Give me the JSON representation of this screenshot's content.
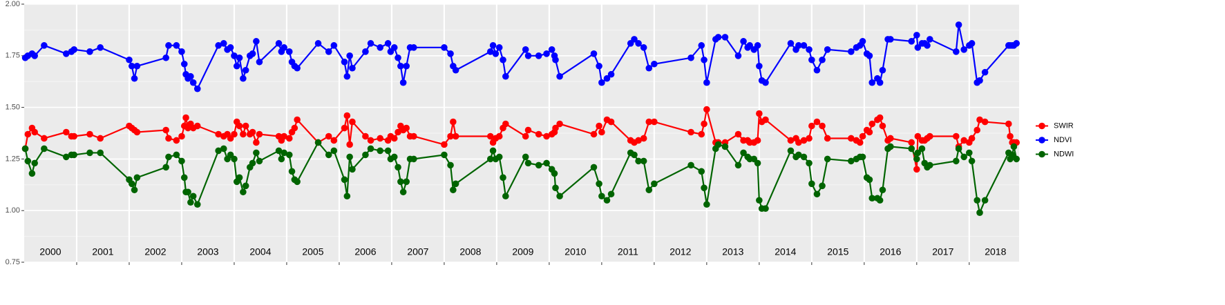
{
  "chart_data": {
    "type": "line",
    "x": [
      2000.02,
      2000.07,
      2000.15,
      2000.2,
      2000.38,
      2000.8,
      2000.9,
      2000.95,
      2001.25,
      2001.45,
      2002.0,
      2002.05,
      2002.1,
      2002.15,
      2002.7,
      2002.75,
      2002.9,
      2003.0,
      2003.05,
      2003.08,
      2003.12,
      2003.17,
      2003.22,
      2003.3,
      2003.7,
      2003.8,
      2003.87,
      2003.93,
      2004.0,
      2004.05,
      2004.1,
      2004.17,
      2004.22,
      2004.3,
      2004.35,
      2004.42,
      2004.48,
      2004.85,
      2004.9,
      2004.95,
      2005.05,
      2005.1,
      2005.15,
      2005.2,
      2005.6,
      2005.8,
      2005.9,
      2006.1,
      2006.15,
      2006.2,
      2006.25,
      2006.5,
      2006.6,
      2006.78,
      2006.93,
      2006.98,
      2007.05,
      2007.12,
      2007.17,
      2007.22,
      2007.28,
      2007.35,
      2007.42,
      2008.0,
      2008.12,
      2008.17,
      2008.22,
      2008.88,
      2008.93,
      2008.98,
      2009.05,
      2009.12,
      2009.17,
      2009.55,
      2009.6,
      2009.8,
      2009.95,
      2010.05,
      2010.1,
      2010.12,
      2010.2,
      2010.85,
      2010.95,
      2011.0,
      2011.1,
      2011.18,
      2011.55,
      2011.62,
      2011.7,
      2011.8,
      2011.9,
      2012.0,
      2012.7,
      2012.9,
      2012.95,
      2013.0,
      2013.17,
      2013.22,
      2013.35,
      2013.6,
      2013.7,
      2013.78,
      2013.82,
      2013.9,
      2013.97,
      2014.0,
      2014.05,
      2014.12,
      2014.6,
      2014.7,
      2014.75,
      2014.85,
      2014.95,
      2015.0,
      2015.1,
      2015.2,
      2015.3,
      2015.75,
      2015.85,
      2015.92,
      2015.97,
      2016.05,
      2016.1,
      2016.15,
      2016.25,
      2016.3,
      2016.35,
      2016.45,
      2016.5,
      2016.9,
      2017.0,
      2017.02,
      2017.1,
      2017.15,
      2017.2,
      2017.25,
      2017.75,
      2017.8,
      2017.9,
      2018.0,
      2018.05,
      2018.15,
      2018.2,
      2018.3,
      2018.75,
      2018.78,
      2018.82,
      2018.85,
      2018.9
    ],
    "series": [
      {
        "name": "SWIR",
        "color": "#ff0000",
        "values": [
          1.3,
          1.37,
          1.4,
          1.38,
          1.35,
          1.38,
          1.36,
          1.36,
          1.37,
          1.35,
          1.41,
          1.4,
          1.39,
          1.38,
          1.39,
          1.35,
          1.34,
          1.36,
          1.41,
          1.45,
          1.4,
          1.42,
          1.4,
          1.41,
          1.37,
          1.36,
          1.37,
          1.35,
          1.37,
          1.43,
          1.41,
          1.37,
          1.41,
          1.37,
          1.38,
          1.33,
          1.37,
          1.36,
          1.34,
          1.36,
          1.35,
          1.38,
          1.4,
          1.44,
          1.33,
          1.36,
          1.34,
          1.4,
          1.46,
          1.32,
          1.43,
          1.36,
          1.34,
          1.35,
          1.34,
          1.36,
          1.35,
          1.38,
          1.41,
          1.39,
          1.4,
          1.36,
          1.36,
          1.32,
          1.36,
          1.43,
          1.36,
          1.36,
          1.33,
          1.35,
          1.36,
          1.4,
          1.42,
          1.36,
          1.39,
          1.37,
          1.36,
          1.37,
          1.38,
          1.4,
          1.42,
          1.37,
          1.41,
          1.38,
          1.44,
          1.43,
          1.34,
          1.33,
          1.34,
          1.35,
          1.43,
          1.43,
          1.38,
          1.37,
          1.42,
          1.49,
          1.33,
          1.33,
          1.33,
          1.37,
          1.34,
          1.34,
          1.33,
          1.33,
          1.34,
          1.47,
          1.43,
          1.44,
          1.34,
          1.35,
          1.33,
          1.34,
          1.35,
          1.41,
          1.43,
          1.41,
          1.35,
          1.35,
          1.34,
          1.33,
          1.36,
          1.39,
          1.38,
          1.42,
          1.44,
          1.45,
          1.41,
          1.34,
          1.35,
          1.33,
          1.2,
          1.36,
          1.34,
          1.34,
          1.35,
          1.36,
          1.36,
          1.31,
          1.34,
          1.33,
          1.35,
          1.39,
          1.44,
          1.43,
          1.42,
          1.36,
          1.33,
          1.33,
          1.33
        ]
      },
      {
        "name": "NDVI",
        "color": "#0000ff",
        "values": [
          1.74,
          1.75,
          1.76,
          1.75,
          1.8,
          1.76,
          1.77,
          1.78,
          1.77,
          1.79,
          1.73,
          1.7,
          1.64,
          1.7,
          1.74,
          1.8,
          1.8,
          1.77,
          1.71,
          1.66,
          1.64,
          1.65,
          1.62,
          1.59,
          1.8,
          1.81,
          1.78,
          1.79,
          1.75,
          1.7,
          1.74,
          1.64,
          1.68,
          1.75,
          1.76,
          1.82,
          1.72,
          1.81,
          1.77,
          1.79,
          1.77,
          1.72,
          1.7,
          1.69,
          1.81,
          1.77,
          1.8,
          1.72,
          1.65,
          1.75,
          1.69,
          1.77,
          1.81,
          1.79,
          1.81,
          1.77,
          1.79,
          1.74,
          1.7,
          1.62,
          1.7,
          1.79,
          1.79,
          1.79,
          1.76,
          1.7,
          1.68,
          1.77,
          1.8,
          1.76,
          1.79,
          1.73,
          1.65,
          1.78,
          1.75,
          1.75,
          1.76,
          1.78,
          1.75,
          1.73,
          1.65,
          1.76,
          1.7,
          1.62,
          1.64,
          1.66,
          1.81,
          1.83,
          1.81,
          1.79,
          1.69,
          1.71,
          1.74,
          1.8,
          1.73,
          1.62,
          1.83,
          1.84,
          1.84,
          1.75,
          1.82,
          1.79,
          1.8,
          1.78,
          1.8,
          1.7,
          1.63,
          1.62,
          1.81,
          1.78,
          1.8,
          1.8,
          1.78,
          1.73,
          1.68,
          1.73,
          1.78,
          1.77,
          1.79,
          1.8,
          1.82,
          1.76,
          1.75,
          1.62,
          1.64,
          1.62,
          1.68,
          1.83,
          1.83,
          1.82,
          1.85,
          1.79,
          1.81,
          1.81,
          1.8,
          1.83,
          1.77,
          1.9,
          1.78,
          1.8,
          1.81,
          1.62,
          1.63,
          1.67,
          1.8,
          1.8,
          1.8,
          1.8,
          1.81
        ]
      },
      {
        "name": "NDWI",
        "color": "#006400",
        "values": [
          1.3,
          1.24,
          1.18,
          1.23,
          1.3,
          1.26,
          1.27,
          1.27,
          1.28,
          1.28,
          1.15,
          1.13,
          1.1,
          1.16,
          1.21,
          1.26,
          1.27,
          1.24,
          1.16,
          1.09,
          1.09,
          1.04,
          1.07,
          1.03,
          1.29,
          1.3,
          1.25,
          1.27,
          1.25,
          1.14,
          1.16,
          1.09,
          1.12,
          1.21,
          1.23,
          1.28,
          1.24,
          1.29,
          1.25,
          1.28,
          1.27,
          1.19,
          1.15,
          1.14,
          1.33,
          1.27,
          1.29,
          1.15,
          1.07,
          1.26,
          1.2,
          1.27,
          1.3,
          1.29,
          1.29,
          1.25,
          1.26,
          1.21,
          1.14,
          1.09,
          1.14,
          1.25,
          1.25,
          1.27,
          1.22,
          1.1,
          1.13,
          1.25,
          1.29,
          1.25,
          1.26,
          1.16,
          1.07,
          1.26,
          1.23,
          1.22,
          1.23,
          1.2,
          1.18,
          1.11,
          1.07,
          1.21,
          1.13,
          1.07,
          1.05,
          1.08,
          1.28,
          1.27,
          1.24,
          1.24,
          1.1,
          1.13,
          1.22,
          1.19,
          1.11,
          1.03,
          1.3,
          1.32,
          1.31,
          1.22,
          1.28,
          1.26,
          1.25,
          1.25,
          1.23,
          1.05,
          1.01,
          1.01,
          1.29,
          1.26,
          1.27,
          1.26,
          1.23,
          1.13,
          1.08,
          1.12,
          1.25,
          1.24,
          1.25,
          1.26,
          1.26,
          1.16,
          1.15,
          1.06,
          1.06,
          1.05,
          1.1,
          1.3,
          1.31,
          1.3,
          1.25,
          1.28,
          1.3,
          1.23,
          1.21,
          1.22,
          1.24,
          1.3,
          1.26,
          1.28,
          1.24,
          1.05,
          0.99,
          1.05,
          1.28,
          1.25,
          1.27,
          1.31,
          1.25
        ]
      }
    ],
    "xlim": [
      2000,
      2018.95
    ],
    "xticks": [
      2001,
      2002,
      2003,
      2004,
      2005,
      2006,
      2007,
      2008,
      2009,
      2010,
      2011,
      2012,
      2013,
      2014,
      2015,
      2016,
      2017,
      2018
    ],
    "ylim": [
      0.75,
      2.0
    ],
    "yticks": [
      {
        "value": 0.75,
        "label": "0.75"
      },
      {
        "value": 1.0,
        "label": "1.00"
      },
      {
        "value": 1.25,
        "label": "1.25"
      },
      {
        "value": 1.5,
        "label": "1.50"
      },
      {
        "value": 1.75,
        "label": "1.75"
      },
      {
        "value": 2.0,
        "label": "2.00"
      }
    ],
    "year_labels": [
      {
        "x": 2000.5,
        "label": "2000"
      },
      {
        "x": 2001.5,
        "label": "2001"
      },
      {
        "x": 2002.5,
        "label": "2002"
      },
      {
        "x": 2003.5,
        "label": "2003"
      },
      {
        "x": 2004.5,
        "label": "2004"
      },
      {
        "x": 2005.5,
        "label": "2005"
      },
      {
        "x": 2006.5,
        "label": "2006"
      },
      {
        "x": 2007.5,
        "label": "2007"
      },
      {
        "x": 2008.5,
        "label": "2008"
      },
      {
        "x": 2009.5,
        "label": "2009"
      },
      {
        "x": 2010.5,
        "label": "2010"
      },
      {
        "x": 2011.5,
        "label": "2011"
      },
      {
        "x": 2012.5,
        "label": "2012"
      },
      {
        "x": 2013.5,
        "label": "2013"
      },
      {
        "x": 2014.5,
        "label": "2014"
      },
      {
        "x": 2015.5,
        "label": "2015"
      },
      {
        "x": 2016.5,
        "label": "2016"
      },
      {
        "x": 2017.5,
        "label": "2017"
      },
      {
        "x": 2018.5,
        "label": "2018"
      }
    ],
    "grid": true,
    "legend": "right"
  }
}
